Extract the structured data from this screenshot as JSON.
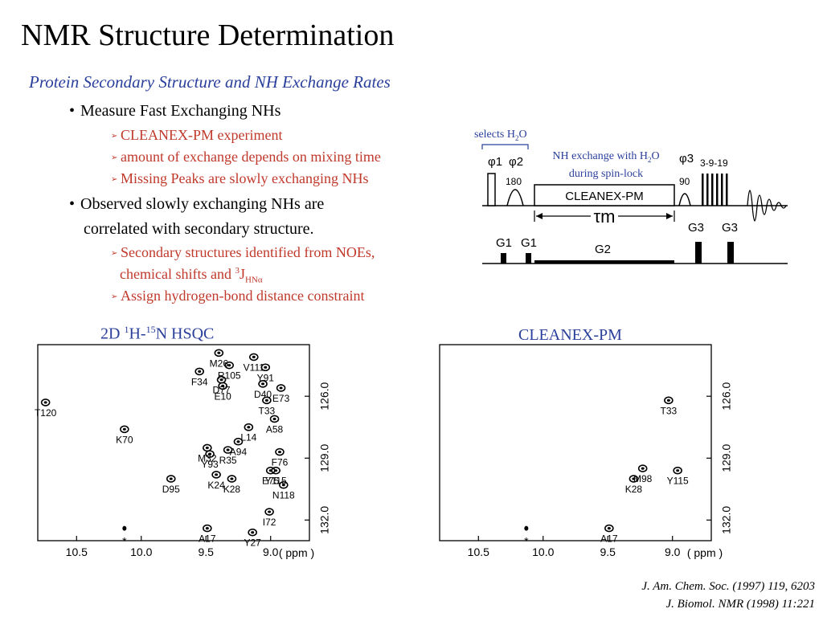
{
  "slide": {
    "title": "NMR Structure Determination",
    "subtitle": "Protein Secondary Structure and NH Exchange Rates",
    "bullets": [
      {
        "text": "Measure Fast Exchanging NHs",
        "subs": [
          "CLEANEX-PM experiment",
          "amount of exchange depends on mixing time",
          "Missing Peaks are slowly exchanging NHs"
        ]
      },
      {
        "line1": "Observed slowly exchanging NHs are",
        "line2": "correlated with secondary structure.",
        "sub1_line1": "Secondary structures identified from NOEs,",
        "sub1_line2_pre": "chemical shifts and ",
        "sub1_sup": "3",
        "sub1_J": "J",
        "sub1_subscript": "HNα",
        "sub2": "Assign hydrogen-bond distance constraint"
      }
    ],
    "citations": [
      "J. Am. Chem. Soc. (1997) 119, 6203",
      "J. Biomol. NMR (1998) 11:221"
    ]
  },
  "pulse_sequence": {
    "selects_label": "selects H",
    "selects_sub": "2",
    "selects_tail": "O",
    "nh_exchange_line1": "NH exchange with H",
    "nh_exchange_sub": "2",
    "nh_exchange_tail": "O",
    "nh_exchange_line2": "during spin-lock",
    "phi1": "φ1",
    "phi2": "φ2",
    "phi3": "φ3",
    "pulse_180": "180",
    "pulse_90": "90",
    "block_label": "CLEANEX-PM",
    "wate": "3-9-19",
    "tau": "τm",
    "gradients": [
      "G1",
      "G1",
      "G2",
      "G3",
      "G3"
    ]
  },
  "hsqc": {
    "title_pre": "2D ",
    "title_sup1": "1",
    "title_mid": "H-",
    "title_sup2": "15",
    "title_post": "N HSQC",
    "x_ticks": [
      "10.5",
      "10.0",
      "9.5",
      "9.0"
    ],
    "y_ticks": [
      "126.0",
      "129.0",
      "132.0"
    ],
    "unit": "( ppm )",
    "peaks": [
      {
        "label": "M26",
        "x": 9.4,
        "y": 123.9
      },
      {
        "label": "V111",
        "x": 9.13,
        "y": 124.1
      },
      {
        "label": "R105",
        "x": 9.32,
        "y": 124.5
      },
      {
        "label": "Y91",
        "x": 9.04,
        "y": 124.6
      },
      {
        "label": "F34",
        "x": 9.55,
        "y": 124.8
      },
      {
        "label": "D77",
        "x": 9.38,
        "y": 125.2
      },
      {
        "label": "D40",
        "x": 9.06,
        "y": 125.4
      },
      {
        "label": "E73",
        "x": 8.92,
        "y": 125.6
      },
      {
        "label": "E10",
        "x": 9.37,
        "y": 125.5
      },
      {
        "label": "T120",
        "x": 10.74,
        "y": 126.3
      },
      {
        "label": "T33",
        "x": 9.03,
        "y": 126.2
      },
      {
        "label": "A58",
        "x": 8.97,
        "y": 127.1
      },
      {
        "label": "K70",
        "x": 10.13,
        "y": 127.6
      },
      {
        "label": "M32",
        "x": 9.49,
        "y": 128.5
      },
      {
        "label": "R35",
        "x": 9.33,
        "y": 128.6
      },
      {
        "label": "L14",
        "x": 9.17,
        "y": 127.5
      },
      {
        "label": "A94",
        "x": 9.25,
        "y": 128.2
      },
      {
        "label": "Y93",
        "x": 9.47,
        "y": 128.8
      },
      {
        "label": "F76",
        "x": 8.93,
        "y": 128.7
      },
      {
        "label": "E75",
        "x": 9.0,
        "y": 129.6
      },
      {
        "label": "Y115",
        "x": 8.96,
        "y": 129.6
      },
      {
        "label": "D95",
        "x": 9.77,
        "y": 130.0
      },
      {
        "label": "K24",
        "x": 9.42,
        "y": 129.8
      },
      {
        "label": "K28",
        "x": 9.3,
        "y": 130.0
      },
      {
        "label": "N118",
        "x": 8.9,
        "y": 130.3
      },
      {
        "label": "I72",
        "x": 9.01,
        "y": 131.6
      },
      {
        "label": "A17",
        "x": 9.49,
        "y": 132.4
      },
      {
        "label": "Y27",
        "x": 9.14,
        "y": 132.6
      },
      {
        "label": "*",
        "x": 10.13,
        "y": 132.4
      }
    ]
  },
  "cleanex": {
    "title": "CLEANEX-PM",
    "x_ticks": [
      "10.5",
      "10.0",
      "9.5",
      "9.0"
    ],
    "y_ticks": [
      "126.0",
      "129.0",
      "132.0"
    ],
    "unit": "( ppm )",
    "peaks": [
      {
        "label": "T33",
        "x": 9.03,
        "y": 126.2
      },
      {
        "label": "M98",
        "x": 9.23,
        "y": 129.5
      },
      {
        "label": "Y115",
        "x": 8.96,
        "y": 129.6
      },
      {
        "label": "K28",
        "x": 9.3,
        "y": 130.0
      },
      {
        "label": "A17",
        "x": 9.49,
        "y": 132.4
      },
      {
        "label": "*",
        "x": 10.13,
        "y": 132.4
      }
    ]
  }
}
